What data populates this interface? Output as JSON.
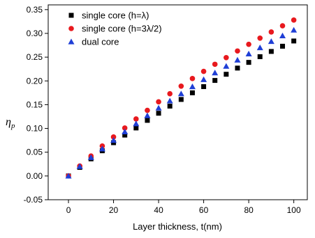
{
  "chart_data": {
    "type": "scatter",
    "xlabel": "Layer thickness, t(nm)",
    "ylabel": "η",
    "ylabel_sub": "p",
    "xlim": [
      -9,
      106
    ],
    "ylim": [
      -0.05,
      0.36
    ],
    "xticks": [
      0,
      20,
      40,
      60,
      80,
      100
    ],
    "yticks": [
      -0.05,
      0.0,
      0.05,
      0.1,
      0.15,
      0.2,
      0.25,
      0.3,
      0.35
    ],
    "ytick_labels": [
      "-0.05",
      "0.00",
      "0.05",
      "0.10",
      "0.15",
      "0.20",
      "0.25",
      "0.30",
      "0.35"
    ],
    "legend_position": "top-left",
    "x": [
      0,
      5,
      10,
      15,
      20,
      25,
      30,
      35,
      40,
      45,
      50,
      55,
      60,
      65,
      70,
      75,
      80,
      85,
      90,
      95,
      100
    ],
    "series": [
      {
        "name": "single core (h=λ)",
        "marker": "square",
        "color": "#000000",
        "values": [
          0.0,
          0.018,
          0.036,
          0.053,
          0.07,
          0.086,
          0.101,
          0.117,
          0.132,
          0.147,
          0.161,
          0.175,
          0.188,
          0.201,
          0.214,
          0.227,
          0.239,
          0.251,
          0.262,
          0.273,
          0.284
        ]
      },
      {
        "name": "single core (h=3λ/2)",
        "marker": "circle",
        "color": "#e8191e",
        "values": [
          0.0,
          0.021,
          0.042,
          0.063,
          0.082,
          0.101,
          0.12,
          0.138,
          0.156,
          0.173,
          0.189,
          0.205,
          0.22,
          0.235,
          0.249,
          0.263,
          0.277,
          0.29,
          0.303,
          0.316,
          0.328
        ]
      },
      {
        "name": "dual core",
        "marker": "triangle",
        "color": "#1f3fd6",
        "values": [
          0.0,
          0.02,
          0.039,
          0.057,
          0.075,
          0.093,
          0.11,
          0.127,
          0.143,
          0.158,
          0.173,
          0.188,
          0.203,
          0.217,
          0.231,
          0.244,
          0.257,
          0.27,
          0.283,
          0.295,
          0.307
        ]
      }
    ]
  }
}
